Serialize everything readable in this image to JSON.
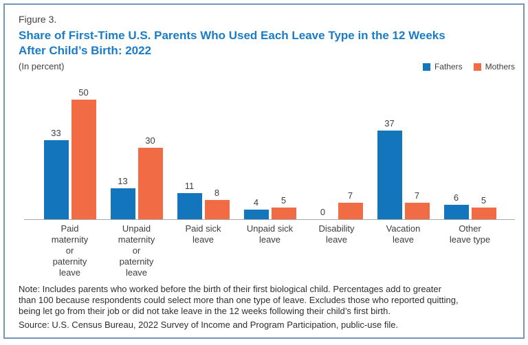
{
  "header": {
    "figure_label": "Figure 3.",
    "title": "Share of First-Time U.S. Parents Who Used Each Leave Type in the 12 Weeks\nAfter Child’s Birth: 2022",
    "subtitle": "(In percent)"
  },
  "chart_data": {
    "type": "bar",
    "title": "Share of First-Time U.S. Parents Who Used Each Leave Type in the 12 Weeks After Child’s Birth: 2022",
    "units": "percent",
    "categories": [
      [
        "Paid",
        "maternity",
        "or",
        "paternity",
        "leave"
      ],
      [
        "Unpaid",
        "maternity",
        "or",
        "paternity",
        "leave"
      ],
      [
        "Paid sick",
        "leave"
      ],
      [
        "Unpaid sick",
        "leave"
      ],
      [
        "Disability",
        "leave"
      ],
      [
        "Vacation",
        "leave"
      ],
      [
        "Other",
        "leave type"
      ]
    ],
    "series": [
      {
        "name": "Fathers",
        "color": "#1376BC",
        "values": [
          33,
          13,
          11,
          4,
          0,
          37,
          6
        ]
      },
      {
        "name": "Mothers",
        "color": "#F16C44",
        "values": [
          50,
          30,
          8,
          5,
          7,
          7,
          5
        ]
      }
    ],
    "ylim": [
      0,
      50
    ],
    "value_labels": true,
    "grid": false,
    "legend_position": "top-right",
    "axis_line_color": "#A8A8A8"
  },
  "notes": {
    "note": "Note: Includes parents who worked before the birth of their first biological child. Percentages add to greater\nthan 100 because respondents could select more than one type of leave. Excludes those who reported quitting,\nbeing let go from their job or did not take leave in the 12 weeks following their child’s first birth.",
    "source": "Source: U.S. Census Bureau, 2022 Survey of Income and Program Participation, public-use file."
  }
}
